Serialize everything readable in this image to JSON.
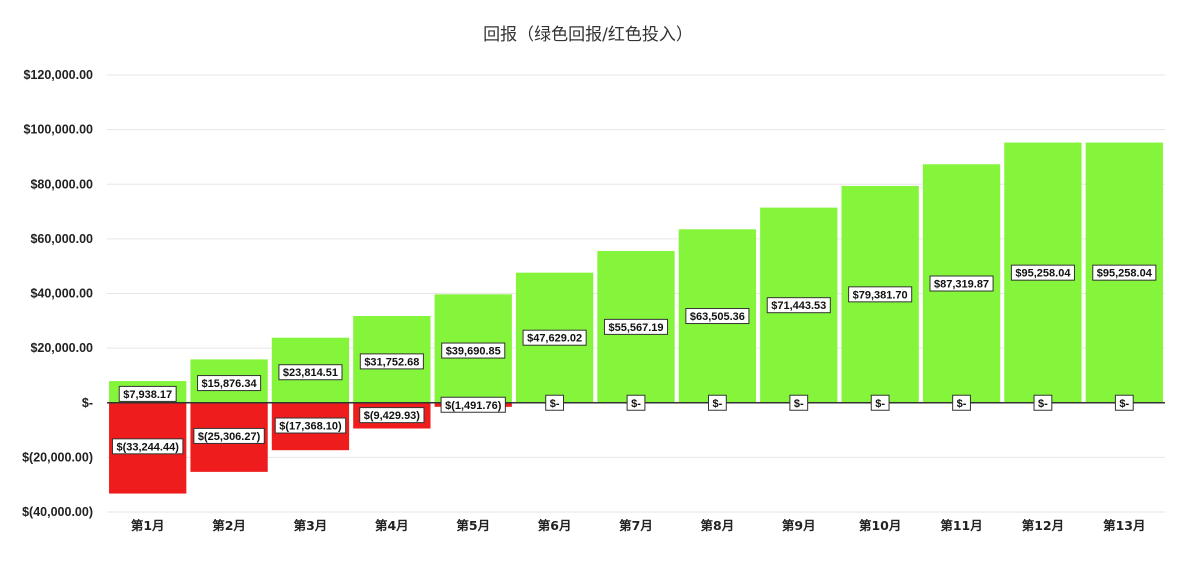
{
  "chart_data": {
    "type": "bar",
    "title": "回报（绿色回报/红色投入）",
    "categories": [
      "第1月",
      "第2月",
      "第3月",
      "第4月",
      "第5月",
      "第6月",
      "第7月",
      "第8月",
      "第9月",
      "第10月",
      "第11月",
      "第12月",
      "第13月"
    ],
    "series": [
      {
        "values": [
          7938.17,
          15876.34,
          23814.51,
          31752.68,
          39690.85,
          47629.02,
          55567.19,
          63505.36,
          71443.53,
          79381.7,
          87319.87,
          95258.04,
          95258.04
        ],
        "labels": [
          "$7,938.17",
          "$15,876.34",
          "$23,814.51",
          "$31,752.68",
          "$39,690.85",
          "$47,629.02",
          "$55,567.19",
          "$63,505.36",
          "$71,443.53",
          "$79,381.70",
          "$87,319.87",
          "$95,258.04",
          "$95,258.04"
        ],
        "color": "#84f53b"
      },
      {
        "values": [
          -33244.44,
          -25306.27,
          -17368.1,
          -9429.93,
          -1491.76,
          0,
          0,
          0,
          0,
          0,
          0,
          0,
          0
        ],
        "labels": [
          "$(33,244.44)",
          "$(25,306.27)",
          "$(17,368.10)",
          "$(9,429.93)",
          "$(1,491.76)",
          "$-",
          "$-",
          "$-",
          "$-",
          "$-",
          "$-",
          "$-",
          "$-"
        ],
        "color": "#ee1c1c"
      }
    ],
    "ylim": [
      -40000,
      120000
    ],
    "yticks": [
      120000,
      100000,
      80000,
      60000,
      40000,
      20000,
      0,
      -20000,
      -40000
    ],
    "ytick_labels": [
      "$120,000.00",
      "$100,000.00",
      "$80,000.00",
      "$60,000.00",
      "$40,000.00",
      "$20,000.00",
      "$-",
      "$(20,000.00)",
      "$(40,000.00)"
    ],
    "grid": true,
    "legend": "none"
  }
}
